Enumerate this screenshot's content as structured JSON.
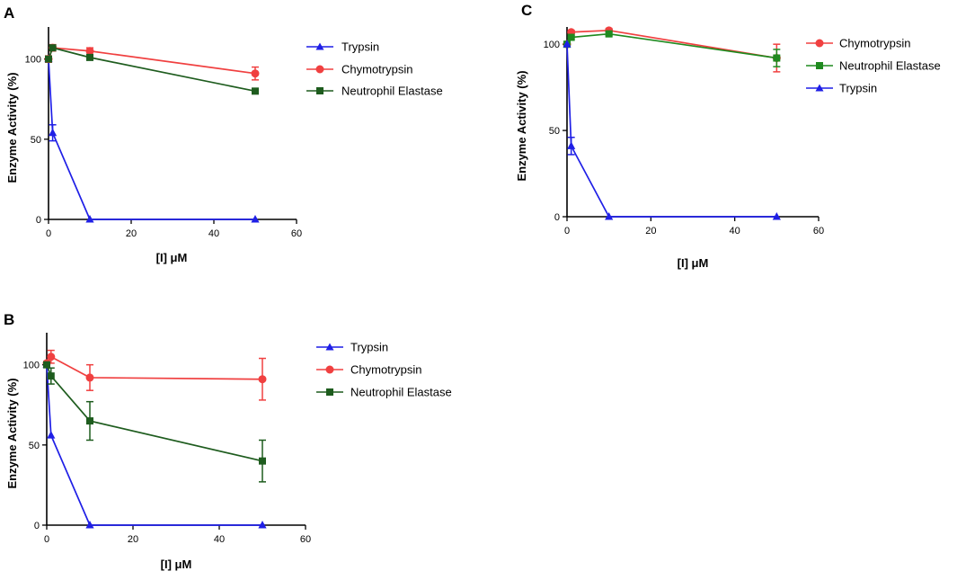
{
  "chart_data": [
    {
      "panel": "A",
      "type": "line",
      "xlabel": "[I] μM",
      "ylabel": "Enzyme Activity (%)",
      "xlim": [
        0,
        60
      ],
      "ylim": [
        0,
        120
      ],
      "xticks": [
        "0",
        "20",
        "40",
        "60"
      ],
      "yticks": [
        "0",
        "50",
        "100"
      ],
      "legend_position": "right",
      "series": [
        {
          "name": "Trypsin",
          "color": "#1f1fe6",
          "marker": "triangle",
          "x": [
            0,
            1,
            10,
            50
          ],
          "y": [
            100,
            54,
            0,
            0
          ],
          "err": [
            0,
            5,
            0,
            0
          ]
        },
        {
          "name": "Chymotrypsin",
          "color": "#f04040",
          "marker": "circle",
          "x": [
            0,
            1,
            10,
            50
          ],
          "y": [
            100,
            107,
            105,
            91
          ],
          "err": [
            2,
            2,
            2,
            4
          ]
        },
        {
          "name": "Neutrophil Elastase",
          "color": "#1e5c1e",
          "marker": "square",
          "x": [
            0,
            1,
            10,
            50
          ],
          "y": [
            100,
            107,
            101,
            80
          ],
          "err": [
            0,
            1,
            1,
            1
          ]
        }
      ]
    },
    {
      "panel": "B",
      "type": "line",
      "xlabel": "[I] μM",
      "ylabel": "Enzyme Activity (%)",
      "xlim": [
        0,
        60
      ],
      "ylim": [
        0,
        120
      ],
      "xticks": [
        "0",
        "20",
        "40",
        "60"
      ],
      "yticks": [
        "0",
        "50",
        "100"
      ],
      "legend_position": "right",
      "series": [
        {
          "name": "Trypsin",
          "color": "#1f1fe6",
          "marker": "triangle",
          "x": [
            0,
            1,
            10,
            50
          ],
          "y": [
            100,
            56,
            0,
            0
          ],
          "err": [
            0,
            0,
            0,
            0
          ]
        },
        {
          "name": "Chymotrypsin",
          "color": "#f04040",
          "marker": "circle",
          "x": [
            0,
            1,
            10,
            50
          ],
          "y": [
            101,
            105,
            92,
            91
          ],
          "err": [
            1,
            4,
            8,
            13
          ]
        },
        {
          "name": "Neutrophil Elastase",
          "color": "#1e5c1e",
          "marker": "square",
          "x": [
            0,
            1,
            10,
            50
          ],
          "y": [
            100,
            93,
            65,
            40
          ],
          "err": [
            0,
            5,
            12,
            13
          ]
        }
      ]
    },
    {
      "panel": "C",
      "type": "line",
      "xlabel": "[I] μM",
      "ylabel": "Enzyme Activity (%)",
      "xlim": [
        0,
        60
      ],
      "ylim": [
        0,
        110
      ],
      "xticks": [
        "0",
        "20",
        "40",
        "60"
      ],
      "yticks": [
        "0",
        "50",
        "100"
      ],
      "legend_position": "right",
      "series": [
        {
          "name": "Chymotrypsin",
          "color": "#f04040",
          "marker": "circle",
          "x": [
            0,
            1,
            10,
            50
          ],
          "y": [
            100,
            107,
            108,
            92
          ],
          "err": [
            0,
            1,
            1,
            8
          ]
        },
        {
          "name": "Neutrophil Elastase",
          "color": "#1f8a1f",
          "marker": "square",
          "x": [
            0,
            1,
            10,
            50
          ],
          "y": [
            100,
            104,
            106,
            92
          ],
          "err": [
            0,
            1,
            1,
            5
          ]
        },
        {
          "name": "Trypsin",
          "color": "#1f1fe6",
          "marker": "triangle",
          "x": [
            0,
            1,
            10,
            50
          ],
          "y": [
            100,
            41,
            0,
            0
          ],
          "err": [
            0,
            5,
            0,
            0
          ]
        }
      ]
    }
  ]
}
